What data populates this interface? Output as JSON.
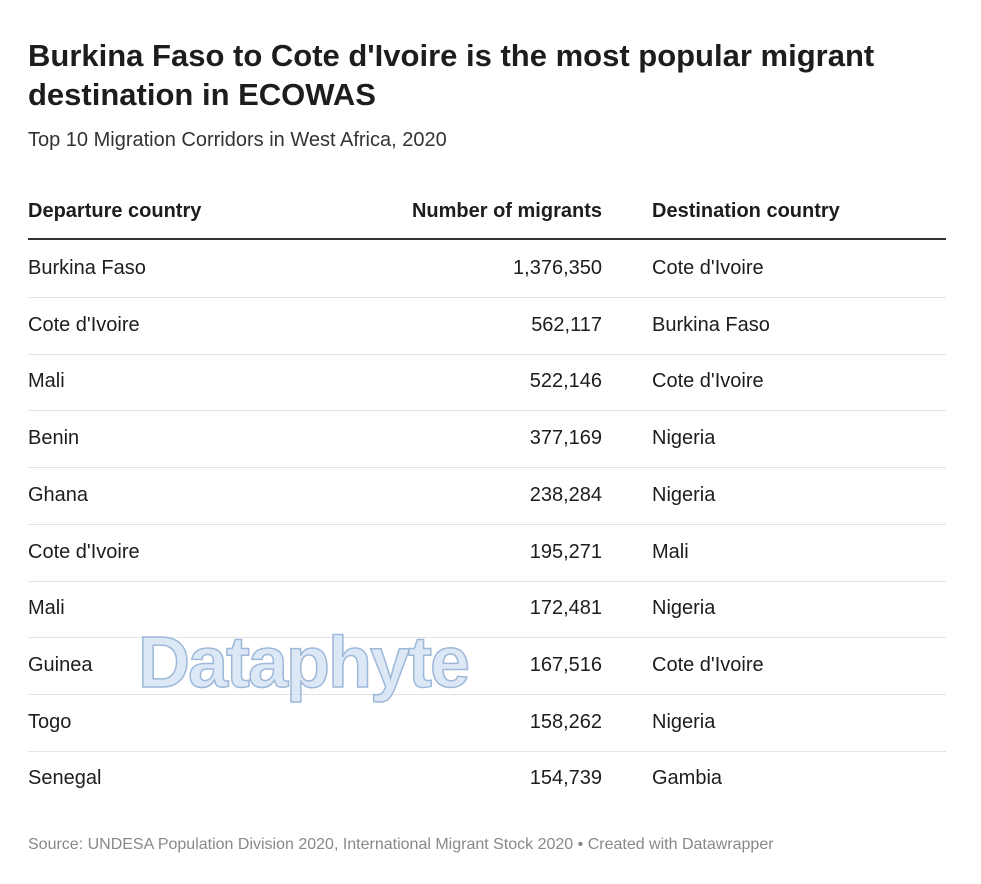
{
  "header": {
    "title": "Burkina Faso to Cote d'Ivoire is the most popular migrant destination in ECOWAS",
    "subtitle": "Top 10 Migration Corridors in West Africa, 2020"
  },
  "table": {
    "columns": [
      "Departure country",
      "Number of migrants",
      "Destination country"
    ],
    "rows": [
      [
        "Burkina Faso",
        "1,376,350",
        "Cote d'Ivoire"
      ],
      [
        "Cote d'Ivoire",
        "562,117",
        "Burkina Faso"
      ],
      [
        "Mali",
        "522,146",
        "Cote d'Ivoire"
      ],
      [
        "Benin",
        "377,169",
        "Nigeria"
      ],
      [
        "Ghana",
        "238,284",
        "Nigeria"
      ],
      [
        "Cote d'Ivoire",
        "195,271",
        "Mali"
      ],
      [
        "Mali",
        "172,481",
        "Nigeria"
      ],
      [
        "Guinea",
        "167,516",
        "Cote d'Ivoire"
      ],
      [
        "Togo",
        "158,262",
        "Nigeria"
      ],
      [
        "Senegal",
        "154,739",
        "Gambia"
      ]
    ]
  },
  "footer": {
    "source": "Source: UNDESA Population Division 2020, International Migrant Stock 2020 • Created with Datawrapper"
  },
  "watermark": "Dataphyte"
}
